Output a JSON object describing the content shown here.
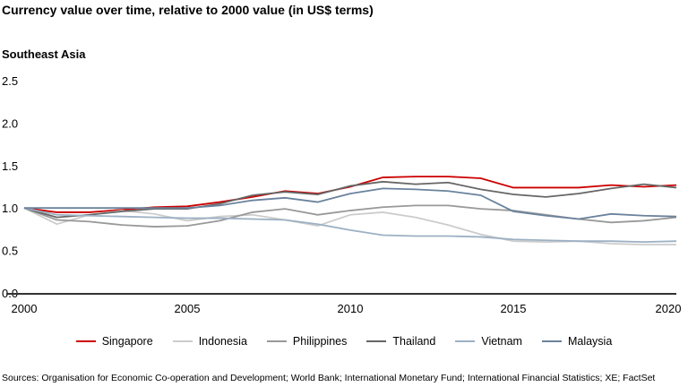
{
  "title": "Currency value over time, relative to 2000 value (in US$ terms)",
  "source": "Sources: Organisation for Economic Co-operation and Development; World Bank; International Monetary Fund; International Financial Statistics; XE; FactSet",
  "chart_data": {
    "type": "line",
    "title": "Currency value over time, relative to 2000 value (in US$ terms)",
    "subtitle": "Southeast Asia",
    "x": [
      2000,
      2001,
      2002,
      2003,
      2004,
      2005,
      2006,
      2007,
      2008,
      2009,
      2010,
      2011,
      2012,
      2013,
      2014,
      2015,
      2016,
      2017,
      2018,
      2019,
      2020
    ],
    "xlim": [
      2000,
      2020
    ],
    "ylim": [
      0,
      2.5
    ],
    "xticks": [
      "2000",
      "2005",
      "2010",
      "2015",
      "2020"
    ],
    "yticks": [
      "0.0",
      "0.5",
      "1.0",
      "1.5",
      "2.0",
      "2.5"
    ],
    "grid": false,
    "legend": "bottom",
    "series": [
      {
        "name": "Singapore",
        "color": "#cc0000",
        "values": [
          1.0,
          0.95,
          0.95,
          0.98,
          1.01,
          1.02,
          1.07,
          1.13,
          1.2,
          1.17,
          1.25,
          1.36,
          1.37,
          1.37,
          1.35,
          1.24,
          1.24,
          1.24,
          1.27,
          1.25,
          1.27
        ]
      },
      {
        "name": "Indonesia",
        "color": "#cccccc",
        "values": [
          1.0,
          0.81,
          0.92,
          0.97,
          0.93,
          0.85,
          0.9,
          0.92,
          0.86,
          0.79,
          0.92,
          0.95,
          0.89,
          0.8,
          0.69,
          0.61,
          0.6,
          0.61,
          0.58,
          0.57,
          0.57
        ]
      },
      {
        "name": "Philippines",
        "color": "#999999",
        "values": [
          1.0,
          0.86,
          0.84,
          0.8,
          0.78,
          0.79,
          0.85,
          0.95,
          0.99,
          0.92,
          0.97,
          1.01,
          1.03,
          1.03,
          0.99,
          0.97,
          0.92,
          0.87,
          0.83,
          0.85,
          0.89
        ]
      },
      {
        "name": "Thailand",
        "color": "#666666",
        "values": [
          1.0,
          0.89,
          0.92,
          0.96,
          0.99,
          0.99,
          1.05,
          1.15,
          1.19,
          1.16,
          1.26,
          1.31,
          1.28,
          1.3,
          1.22,
          1.16,
          1.13,
          1.17,
          1.23,
          1.28,
          1.24
        ]
      },
      {
        "name": "Vietnam",
        "color": "#9cb0c4",
        "values": [
          1.0,
          0.92,
          0.91,
          0.9,
          0.89,
          0.88,
          0.88,
          0.87,
          0.86,
          0.81,
          0.74,
          0.68,
          0.67,
          0.67,
          0.66,
          0.63,
          0.62,
          0.61,
          0.61,
          0.6,
          0.61
        ]
      },
      {
        "name": "Malaysia",
        "color": "#6a829c",
        "values": [
          1.0,
          1.0,
          1.0,
          1.0,
          1.0,
          1.0,
          1.03,
          1.09,
          1.12,
          1.07,
          1.17,
          1.23,
          1.22,
          1.2,
          1.15,
          0.96,
          0.91,
          0.87,
          0.93,
          0.91,
          0.9
        ]
      }
    ]
  }
}
